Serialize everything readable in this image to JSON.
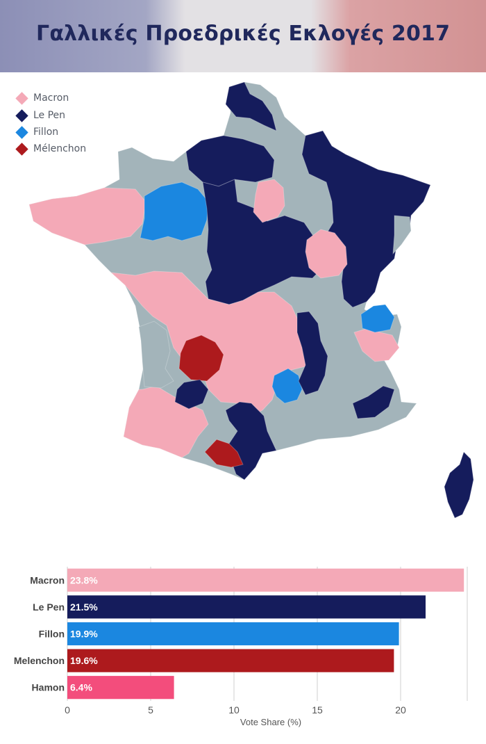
{
  "title": "Γαλλικές Προεδρικές Εκλογές 2017",
  "legend": [
    {
      "label": "Macron",
      "color": "#f4a9b7"
    },
    {
      "label": "Le Pen",
      "color": "#151c5c"
    },
    {
      "label": "Fillon",
      "color": "#1b87e0"
    },
    {
      "label": "Mélenchon",
      "color": "#ad1a1d"
    }
  ],
  "colors": {
    "macron": "#f4a9b7",
    "lepen": "#151c5c",
    "fillon": "#1b87e0",
    "melenchon": "#ad1a1d",
    "hamon": "#f34d7c",
    "other": "#a3b4ba"
  },
  "chart_data": {
    "type": "bar",
    "orientation": "horizontal",
    "categories": [
      "Macron",
      "Le Pen",
      "Fillon",
      "Melenchon",
      "Hamon"
    ],
    "values": [
      23.8,
      21.5,
      19.9,
      19.6,
      6.4
    ],
    "data_labels": [
      "23.8%",
      "21.5%",
      "19.9%",
      "19.6%",
      "6.4%"
    ],
    "colors": [
      "#f4a9b7",
      "#151c5c",
      "#1b87e0",
      "#ad1a1d",
      "#f34d7c"
    ],
    "xlabel": "Vote Share (%)",
    "ylabel": "",
    "xlim": [
      0,
      24
    ],
    "xticks": [
      0,
      5,
      10,
      15,
      20
    ],
    "grid": true
  }
}
